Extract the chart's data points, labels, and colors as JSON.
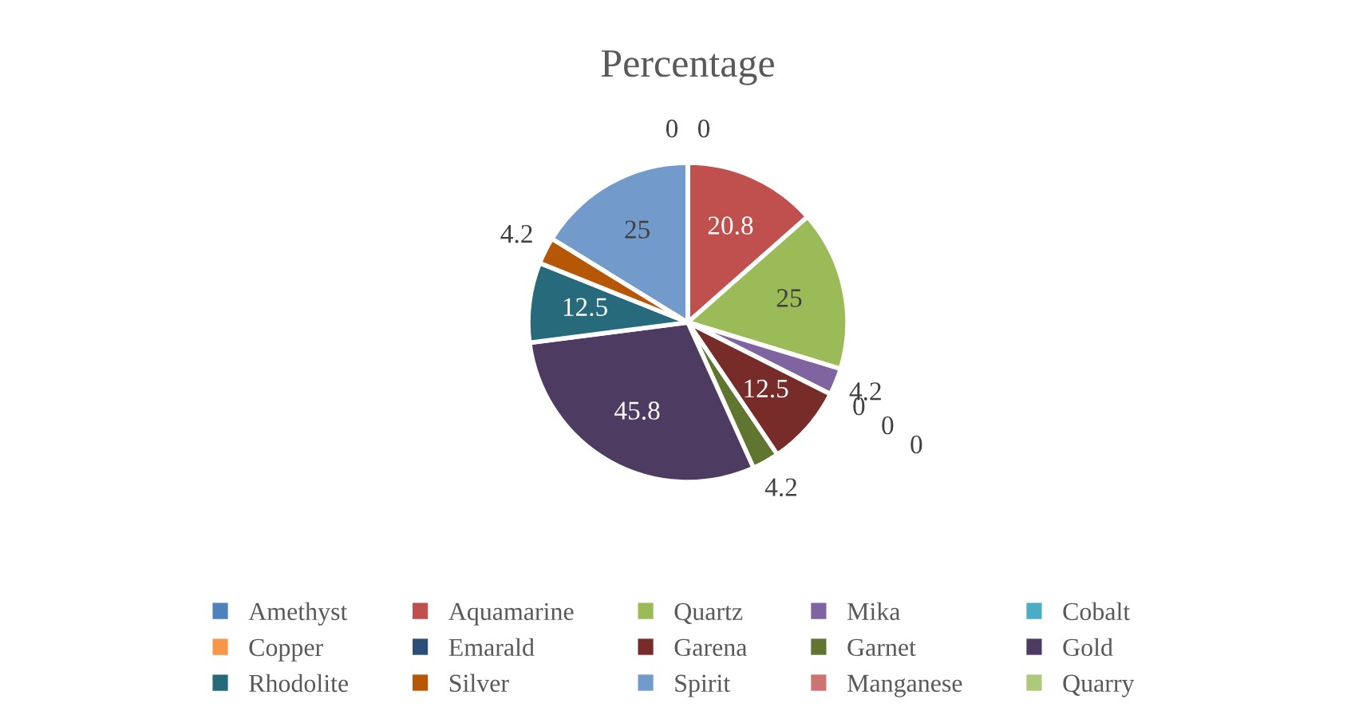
{
  "chart_data": {
    "type": "pie",
    "title": "Percentage",
    "categories": [
      "Amethyst",
      "Aquamarine",
      "Quartz",
      "Mika",
      "Cobalt",
      "Copper",
      "Emarald",
      "Garena",
      "Garnet",
      "Gold",
      "Rhodolite",
      "Silver",
      "Spirit",
      "Manganese",
      "Quarry"
    ],
    "values": [
      0,
      20.8,
      25,
      4.2,
      0,
      0,
      0,
      12.5,
      4.2,
      45.8,
      12.5,
      4.2,
      25,
      0,
      0
    ],
    "value_labels": [
      "0",
      "20.8",
      "25",
      "4.2",
      "0",
      "0",
      "0",
      "12.5",
      "4.2",
      "45.8",
      "12.5",
      "4.2",
      "25",
      null,
      "0"
    ],
    "colors": [
      "#4f81bd",
      "#c0504d",
      "#9bbb59",
      "#8064a2",
      "#4bacc6",
      "#f79646",
      "#2c4d75",
      "#772c2a",
      "#5f7530",
      "#4d3b62",
      "#276a7c",
      "#b65708",
      "#729aca",
      "#cd7371",
      "#afc97a"
    ],
    "legend": "bottom"
  }
}
